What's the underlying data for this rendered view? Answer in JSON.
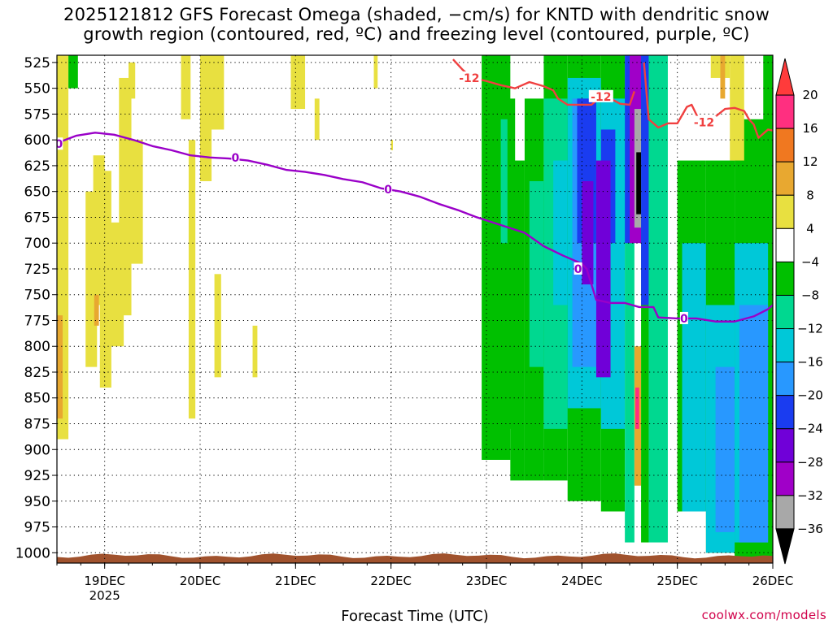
{
  "title": {
    "line1": "2025121812 GFS Forecast Omega (shaded, −cm/s) for KNTD with dendritic snow",
    "line2": "growth region (contoured, red, ºC) and freezing level (contoured, purple, ºC)"
  },
  "credit": "coolwx.com/models",
  "chart_data": {
    "type": "heatmap",
    "title": "2025121812 GFS Forecast Omega (shaded, −cm/s) for KNTD with dendritic snow growth region (contoured, red, ºC) and freezing level (contoured, purple, ºC)",
    "xlabel": "Forecast Time (UTC)",
    "ylabel": "",
    "x_ticks": [
      "19DEC",
      "20DEC",
      "21DEC",
      "22DEC",
      "23DEC",
      "24DEC",
      "25DEC",
      "26DEC"
    ],
    "x_year_label": "2025",
    "xlim_days": [
      18.5,
      26.0
    ],
    "y_ticks": [
      525,
      550,
      575,
      600,
      625,
      650,
      675,
      700,
      725,
      750,
      775,
      800,
      825,
      850,
      875,
      900,
      925,
      950,
      975,
      1000
    ],
    "ylim_hpa": [
      518,
      1010
    ],
    "grid": true,
    "colorbar": {
      "labels": [
        "20",
        "16",
        "12",
        "8",
        "4",
        "−4",
        "−8",
        "−12",
        "−16",
        "−20",
        "−24",
        "−28",
        "−32",
        "−36"
      ],
      "colors": [
        "#ff3b3b",
        "#ff2f80",
        "#f07820",
        "#e8a830",
        "#e8e040",
        "#ffffff",
        "#00c000",
        "#00d890",
        "#00c8d8",
        "#2898ff",
        "#1a3cf0",
        "#7000d8",
        "#a000c8",
        "#a8a8a8",
        "#000000"
      ]
    },
    "contour_labels": {
      "freezing_level": "0",
      "dgz": "-12"
    },
    "freezing_level_0C": {
      "x_days": [
        18.5,
        18.7,
        18.9,
        19.1,
        19.3,
        19.5,
        19.7,
        19.9,
        20.1,
        20.3,
        20.5,
        20.7,
        20.9,
        21.1,
        21.3,
        21.5,
        21.7,
        21.9,
        22.1,
        22.3,
        22.5,
        22.7,
        22.9,
        23.0,
        23.2,
        23.4,
        23.6,
        23.8,
        24.0,
        24.05,
        24.15,
        24.3,
        24.45,
        24.6,
        24.75,
        24.8,
        25.0,
        25.2,
        25.4,
        25.6,
        25.8,
        25.95,
        26.0
      ],
      "y_hpa": [
        603,
        596,
        593,
        595,
        600,
        606,
        610,
        615,
        617,
        618,
        620,
        624,
        629,
        631,
        634,
        638,
        641,
        647,
        650,
        655,
        662,
        668,
        675,
        678,
        684,
        690,
        703,
        712,
        720,
        725,
        755,
        758,
        758,
        762,
        762,
        772,
        773,
        773,
        776,
        776,
        771,
        764,
        760
      ]
    },
    "dgz_minus12C": [
      {
        "x_days": [
          22.65,
          22.75,
          22.85,
          23.0,
          23.15,
          23.3,
          23.45,
          23.6,
          23.7,
          23.75,
          23.85,
          24.0,
          24.1,
          24.2,
          24.3,
          24.4,
          24.5,
          24.55
        ],
        "y_hpa": [
          522,
          532,
          540,
          543,
          547,
          550,
          544,
          548,
          552,
          560,
          566,
          566,
          566,
          558,
          560,
          565,
          566,
          553
        ]
      },
      {
        "x_days": [
          24.65,
          24.7,
          24.8,
          24.9,
          25.0,
          25.1,
          25.15,
          25.25,
          25.35,
          25.5,
          25.6,
          25.7,
          25.75,
          25.8,
          25.85,
          25.95,
          26.0
        ],
        "y_hpa": [
          525,
          580,
          588,
          584,
          584,
          568,
          566,
          585,
          581,
          570,
          569,
          572,
          580,
          585,
          598,
          590,
          591
        ]
      }
    ],
    "shading": [
      {
        "value": 6,
        "x": [
          18.5,
          18.62
        ],
        "p": [
          518,
          890
        ]
      },
      {
        "value": 10,
        "x": [
          18.5,
          18.56
        ],
        "p": [
          770,
          870
        ]
      },
      {
        "value": -6,
        "x": [
          18.62,
          18.72
        ],
        "p": [
          518,
          550
        ]
      },
      {
        "value": 6,
        "x": [
          18.8,
          18.92
        ],
        "p": [
          650,
          820
        ]
      },
      {
        "value": 6,
        "x": [
          18.88,
          19.0
        ],
        "p": [
          615,
          760
        ]
      },
      {
        "value": 10,
        "x": [
          18.89,
          18.94
        ],
        "p": [
          750,
          780
        ]
      },
      {
        "value": 6,
        "x": [
          18.95,
          19.07
        ],
        "p": [
          630,
          840
        ]
      },
      {
        "value": 6,
        "x": [
          19.0,
          19.2
        ],
        "p": [
          680,
          800
        ]
      },
      {
        "value": 6,
        "x": [
          19.15,
          19.28
        ],
        "p": [
          540,
          770
        ]
      },
      {
        "value": 6,
        "x": [
          19.25,
          19.4
        ],
        "p": [
          600,
          720
        ]
      },
      {
        "value": 6,
        "x": [
          19.25,
          19.32
        ],
        "p": [
          525,
          560
        ]
      },
      {
        "value": 6,
        "x": [
          19.8,
          19.9
        ],
        "p": [
          518,
          580
        ]
      },
      {
        "value": 6,
        "x": [
          20.0,
          20.12
        ],
        "p": [
          518,
          640
        ]
      },
      {
        "value": 6,
        "x": [
          19.88,
          19.95
        ],
        "p": [
          600,
          870
        ]
      },
      {
        "value": 6,
        "x": [
          20.1,
          20.25
        ],
        "p": [
          518,
          590
        ]
      },
      {
        "value": 6,
        "x": [
          20.15,
          20.22
        ],
        "p": [
          730,
          830
        ]
      },
      {
        "value": 6,
        "x": [
          20.55,
          20.6
        ],
        "p": [
          780,
          830
        ]
      },
      {
        "value": 6,
        "x": [
          20.95,
          21.1
        ],
        "p": [
          518,
          570
        ]
      },
      {
        "value": 6,
        "x": [
          21.2,
          21.25
        ],
        "p": [
          560,
          600
        ]
      },
      {
        "value": 6,
        "x": [
          21.82,
          21.86
        ],
        "p": [
          518,
          550
        ]
      },
      {
        "value": 6,
        "x": [
          22.0,
          22.02
        ],
        "p": [
          600,
          610
        ]
      },
      {
        "value": -6,
        "x": [
          22.95,
          23.25
        ],
        "p": [
          518,
          910
        ]
      },
      {
        "value": -6,
        "x": [
          23.0,
          23.3
        ],
        "p": [
          560,
          880
        ]
      },
      {
        "value": -6,
        "x": [
          23.25,
          23.4
        ],
        "p": [
          620,
          930
        ]
      },
      {
        "value": -10,
        "x": [
          23.15,
          23.22
        ],
        "p": [
          580,
          700
        ]
      },
      {
        "value": -6,
        "x": [
          23.4,
          23.6
        ],
        "p": [
          560,
          930
        ]
      },
      {
        "value": -10,
        "x": [
          23.45,
          23.6
        ],
        "p": [
          640,
          820
        ]
      },
      {
        "value": -6,
        "x": [
          23.6,
          23.85
        ],
        "p": [
          518,
          930
        ]
      },
      {
        "value": -10,
        "x": [
          23.6,
          23.9
        ],
        "p": [
          560,
          880
        ]
      },
      {
        "value": -14,
        "x": [
          23.7,
          23.9
        ],
        "p": [
          620,
          760
        ]
      },
      {
        "value": -6,
        "x": [
          23.85,
          24.2
        ],
        "p": [
          518,
          950
        ]
      },
      {
        "value": -14,
        "x": [
          23.85,
          24.2
        ],
        "p": [
          540,
          860
        ]
      },
      {
        "value": -18,
        "x": [
          23.9,
          24.15
        ],
        "p": [
          560,
          820
        ]
      },
      {
        "value": -22,
        "x": [
          23.95,
          24.15
        ],
        "p": [
          560,
          700
        ]
      },
      {
        "value": -26,
        "x": [
          24.0,
          24.12
        ],
        "p": [
          640,
          740
        ]
      },
      {
        "value": -6,
        "x": [
          24.2,
          24.45
        ],
        "p": [
          518,
          960
        ]
      },
      {
        "value": -14,
        "x": [
          24.2,
          24.45
        ],
        "p": [
          560,
          880
        ]
      },
      {
        "value": -22,
        "x": [
          24.2,
          24.35
        ],
        "p": [
          590,
          700
        ]
      },
      {
        "value": -26,
        "x": [
          24.15,
          24.3
        ],
        "p": [
          620,
          830
        ]
      },
      {
        "value": -10,
        "x": [
          24.45,
          24.55
        ],
        "p": [
          518,
          990
        ]
      },
      {
        "value": -22,
        "x": [
          24.45,
          24.55
        ],
        "p": [
          518,
          700
        ]
      },
      {
        "value": -30,
        "x": [
          24.5,
          24.62
        ],
        "p": [
          518,
          700
        ]
      },
      {
        "value": -34,
        "x": [
          24.55,
          24.62
        ],
        "p": [
          570,
          685
        ]
      },
      {
        "value": -40,
        "x": [
          24.57,
          24.62
        ],
        "p": [
          612,
          672
        ]
      },
      {
        "value": 10,
        "x": [
          24.55,
          24.62
        ],
        "p": [
          800,
          935
        ]
      },
      {
        "value": 18,
        "x": [
          24.56,
          24.6
        ],
        "p": [
          840,
          880
        ]
      },
      {
        "value": -6,
        "x": [
          24.62,
          24.7
        ],
        "p": [
          518,
          990
        ]
      },
      {
        "value": -22,
        "x": [
          24.62,
          24.7
        ],
        "p": [
          518,
          760
        ]
      },
      {
        "value": -10,
        "x": [
          24.7,
          24.9
        ],
        "p": [
          518,
          990
        ]
      },
      {
        "value": -6,
        "x": [
          25.0,
          25.3
        ],
        "p": [
          620,
          960
        ]
      },
      {
        "value": -14,
        "x": [
          25.05,
          25.3
        ],
        "p": [
          700,
          960
        ]
      },
      {
        "value": -6,
        "x": [
          25.3,
          25.6
        ],
        "p": [
          620,
          1000
        ]
      },
      {
        "value": -14,
        "x": [
          25.3,
          25.6
        ],
        "p": [
          760,
          1000
        ]
      },
      {
        "value": -18,
        "x": [
          25.4,
          25.6
        ],
        "p": [
          820,
          980
        ]
      },
      {
        "value": -6,
        "x": [
          25.6,
          26.0
        ],
        "p": [
          580,
          1005
        ]
      },
      {
        "value": -14,
        "x": [
          25.6,
          25.95
        ],
        "p": [
          700,
          990
        ]
      },
      {
        "value": -18,
        "x": [
          25.65,
          25.95
        ],
        "p": [
          760,
          990
        ]
      },
      {
        "value": 6,
        "x": [
          25.35,
          25.55
        ],
        "p": [
          518,
          540
        ]
      },
      {
        "value": 10,
        "x": [
          25.45,
          25.5
        ],
        "p": [
          518,
          560
        ]
      },
      {
        "value": 6,
        "x": [
          25.55,
          25.7
        ],
        "p": [
          518,
          620
        ]
      },
      {
        "value": -6,
        "x": [
          25.9,
          26.0
        ],
        "p": [
          518,
          620
        ]
      }
    ],
    "terrain": {
      "color": "#a0522d",
      "top_hpa": 1003
    }
  }
}
